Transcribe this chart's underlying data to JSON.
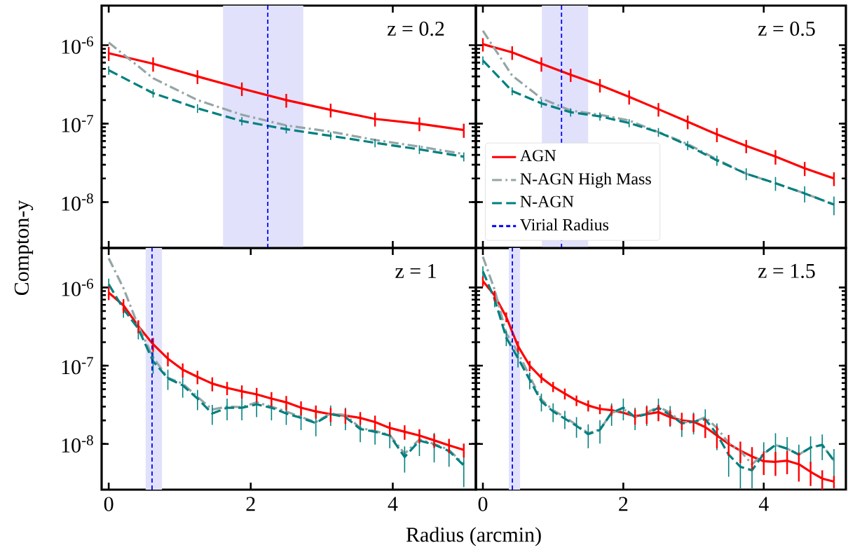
{
  "chart_data": [
    {
      "type": "line",
      "title": "z = 0.2",
      "ylabel": "Compton-y",
      "log": "y",
      "tick_labels": "y",
      "xlim": [
        -0.1,
        5.17
      ],
      "ylim": [
        2.6e-09,
        3.2e-06
      ],
      "xticks": [
        0,
        2,
        4
      ],
      "yticks": [
        {
          "value": 1e-08,
          "label": "10$^{-8}$"
        },
        {
          "value": 1e-07,
          "label": "10$^{-7}$"
        },
        {
          "value": 1e-06,
          "label": "10$^{-6}$"
        }
      ],
      "x": [
        0,
        0.625,
        1.25,
        1.875,
        2.5,
        3.125,
        3.75,
        4.375,
        5.0
      ],
      "bands": [
        {
          "axis": "x",
          "from": 1.61,
          "to": 2.74,
          "color": "#e1e1fb"
        }
      ],
      "ref_lines": [
        {
          "axis": "x",
          "value": 2.24,
          "color": "#0000ff",
          "line_style": "dashed"
        }
      ],
      "series": [
        {
          "color": "#ff0000",
          "line_style": "solid",
          "values": [
            7.9e-07,
            5.8e-07,
            4e-07,
            2.8e-07,
            2e-07,
            1.5e-07,
            1.15e-07,
            1e-07,
            8.3e-08
          ],
          "errors": [
            1.6e-07,
            1.2e-07,
            8e-08,
            5.5e-08,
            4e-08,
            3e-08,
            2.3e-08,
            2e-08,
            1.7e-08
          ]
        },
        {
          "color": "#95a5a6",
          "line_style": "dashdot",
          "values": [
            1.08e-06,
            3.8e-07,
            2e-07,
            1.3e-07,
            9.5e-08,
            7.9e-08,
            6.2e-08,
            5.1e-08,
            4.1e-08
          ]
        },
        {
          "color": "#008080",
          "line_style": "dashed",
          "values": [
            4.8e-07,
            2.45e-07,
            1.57e-07,
            1.08e-07,
            8.5e-08,
            7e-08,
            5.7e-08,
            4.7e-08,
            3.8e-08
          ],
          "errors": [
            6e-08,
            3e-08,
            2e-08,
            1.3e-08,
            1e-08,
            8e-09,
            7e-09,
            6e-09,
            5e-09
          ]
        }
      ]
    },
    {
      "type": "line",
      "title": "z = 0.5",
      "log": "y",
      "tick_labels": false,
      "legend": "bottom left",
      "xlim": [
        -0.1,
        5.17
      ],
      "ylim": [
        2.6e-09,
        3.2e-06
      ],
      "xticks": [
        0,
        2,
        4
      ],
      "yticks": [
        {
          "value": 1e-08,
          "label": null
        },
        {
          "value": 1e-07,
          "label": null
        },
        {
          "value": 1e-06,
          "label": null
        }
      ],
      "x": [
        0,
        0.417,
        0.833,
        1.25,
        1.667,
        2.083,
        2.5,
        2.917,
        3.333,
        3.75,
        4.167,
        4.583,
        5.0
      ],
      "bands": [
        {
          "axis": "x",
          "from": 0.84,
          "to": 1.5,
          "color": "#e1e1fb"
        }
      ],
      "ref_lines": [
        {
          "axis": "x",
          "value": 1.12,
          "label": "Virial Radius",
          "color": "#0000ff",
          "line_style": "dashed"
        }
      ],
      "series": [
        {
          "name": "AGN",
          "color": "#ff0000",
          "line_style": "solid",
          "values": [
            1.03e-06,
            8.1e-07,
            5.8e-07,
            4.2e-07,
            3.1e-07,
            2.2e-07,
            1.53e-07,
            1.06e-07,
            7.3e-08,
            5.2e-08,
            3.8e-08,
            2.7e-08,
            2e-08
          ],
          "errors": [
            2e-07,
            1.6e-07,
            1.2e-07,
            8e-08,
            6e-08,
            4.5e-08,
            3e-08,
            2.1e-08,
            1.5e-08,
            1e-08,
            8e-09,
            5.5e-09,
            4e-09
          ]
        },
        {
          "name": "N-AGN High Mass",
          "color": "#95a5a6",
          "line_style": "dashdot",
          "values": [
            1.53e-06,
            4.1e-07,
            2.1e-07,
            1.47e-07,
            1.3e-07,
            1.1e-07,
            7.8e-08,
            5.5e-08,
            3.5e-08,
            2.3e-08,
            1.74e-08,
            1.29e-08,
            9.3e-09
          ]
        },
        {
          "name": "N-AGN",
          "color": "#008080",
          "line_style": "dashed",
          "values": [
            6.4e-07,
            2.6e-07,
            1.82e-07,
            1.4e-07,
            1.24e-07,
            1.02e-07,
            7.8e-08,
            5.3e-08,
            3.4e-08,
            2.3e-08,
            1.74e-08,
            1.29e-08,
            9.3e-09
          ],
          "errors": [
            8e-08,
            3e-08,
            2.2e-08,
            1.7e-08,
            1.5e-08,
            1.2e-08,
            1e-08,
            7e-09,
            5e-09,
            4e-09,
            3.5e-09,
            3e-09,
            2.5e-09
          ]
        }
      ]
    },
    {
      "type": "line",
      "title": "z = 1",
      "xlabel": "Radius (arcmin)",
      "log": "y",
      "xlim": [
        -0.1,
        5.17
      ],
      "ylim": [
        2.6e-09,
        3.2e-06
      ],
      "xticks": [
        0,
        2,
        4
      ],
      "yticks": [
        {
          "value": 1e-08,
          "label": "10$^{-8}$"
        },
        {
          "value": 1e-07,
          "label": "10$^{-7}$"
        },
        {
          "value": 1e-06,
          "label": "10$^{-6}$"
        }
      ],
      "x": [
        0,
        0.208,
        0.417,
        0.625,
        0.833,
        1.042,
        1.25,
        1.458,
        1.667,
        1.875,
        2.083,
        2.292,
        2.5,
        2.708,
        2.917,
        3.125,
        3.333,
        3.542,
        3.75,
        3.958,
        4.167,
        4.375,
        4.583,
        4.792,
        5.0
      ],
      "bands": [
        {
          "axis": "x",
          "from": 0.52,
          "to": 0.75,
          "color": "#e1e1fb"
        }
      ],
      "ref_lines": [
        {
          "axis": "x",
          "value": 0.61,
          "color": "#0000ff",
          "line_style": "dashed"
        }
      ],
      "series": [
        {
          "color": "#ff0000",
          "line_style": "solid",
          "values": [
            8.6e-07,
            5.9e-07,
            3.2e-07,
            1.88e-07,
            1.23e-07,
            8.9e-08,
            7.2e-08,
            5.9e-08,
            5.2e-08,
            4.7e-08,
            4.3e-08,
            3.8e-08,
            3.4e-08,
            2.9e-08,
            2.6e-08,
            2.4e-08,
            2.3e-08,
            2.15e-08,
            1.9e-08,
            1.6e-08,
            1.43e-08,
            1.28e-08,
            1.11e-08,
            9.6e-09,
            8.4e-09
          ],
          "errors": [
            1.7e-07,
            1.2e-07,
            6e-08,
            3.8e-08,
            2.5e-08,
            1.8e-08,
            1.4e-08,
            1.2e-08,
            1e-08,
            9e-09,
            9e-09,
            8e-09,
            7e-09,
            6e-09,
            5e-09,
            5e-09,
            5e-09,
            4e-09,
            4e-09,
            3e-09,
            3e-09,
            2.6e-09,
            2.2e-09,
            2e-09,
            1.7e-09
          ]
        },
        {
          "color": "#95a5a6",
          "line_style": "dashdot",
          "values": [
            2.36e-06,
            9.8e-07,
            3.2e-07,
            1.28e-07,
            7e-08,
            5.9e-08,
            4e-08,
            2.75e-08,
            3e-08,
            2.95e-08,
            3.4e-08,
            3e-08,
            2.6e-08,
            2.2e-08,
            1.9e-08,
            2.45e-08,
            2.35e-08,
            1.6e-08,
            1.46e-08,
            1.3e-08,
            7.5e-09,
            1.14e-08,
            1e-08,
            8.4e-09,
            5.5e-09
          ]
        },
        {
          "color": "#008080",
          "line_style": "dashed",
          "values": [
            1.1e-06,
            5.3e-07,
            2.97e-07,
            1.14e-07,
            6.9e-08,
            5.6e-08,
            3.8e-08,
            2.45e-08,
            2.9e-08,
            2.9e-08,
            3.2e-08,
            2.9e-08,
            2.45e-08,
            2.15e-08,
            1.85e-08,
            2.4e-08,
            2.2e-08,
            1.55e-08,
            1.43e-08,
            1.28e-08,
            6.8e-09,
            1.1e-08,
            9.8e-09,
            8.1e-09,
            5.3e-09
          ],
          "errors": [
            2e-07,
            1.2e-07,
            8e-08,
            3.5e-08,
            2e-08,
            1.7e-08,
            1.1e-08,
            7e-09,
            9e-09,
            9e-09,
            1e-08,
            9e-09,
            7e-09,
            6.5e-09,
            6e-09,
            7e-09,
            7e-09,
            5e-09,
            4.5e-09,
            4e-09,
            2.5e-09,
            4e-09,
            4e-09,
            3e-09,
            2.5e-09
          ]
        }
      ]
    },
    {
      "type": "line",
      "title": "z = 1.5",
      "log": "y",
      "tick_labels": "x",
      "xlim": [
        -0.1,
        5.17
      ],
      "ylim": [
        2.6e-09,
        3.2e-06
      ],
      "xticks": [
        0,
        2,
        4
      ],
      "yticks": [
        {
          "value": 1e-08,
          "label": null
        },
        {
          "value": 1e-07,
          "label": null
        },
        {
          "value": 1e-06,
          "label": null
        }
      ],
      "x": [
        0,
        0.167,
        0.333,
        0.5,
        0.667,
        0.833,
        1.0,
        1.167,
        1.333,
        1.5,
        1.667,
        1.833,
        2.0,
        2.167,
        2.333,
        2.5,
        2.667,
        2.833,
        3.0,
        3.167,
        3.333,
        3.5,
        3.667,
        3.833,
        4.0,
        4.167,
        4.333,
        4.5,
        4.667,
        4.833,
        5.0
      ],
      "bands": [
        {
          "axis": "x",
          "from": 0.37,
          "to": 0.53,
          "color": "#e1e1fb"
        }
      ],
      "ref_lines": [
        {
          "axis": "x",
          "value": 0.42,
          "color": "#0000ff",
          "line_style": "dashed"
        }
      ],
      "series": [
        {
          "color": "#ff0000",
          "line_style": "solid",
          "values": [
            1.21e-06,
            7.9e-07,
            4.2e-07,
            1.78e-07,
            1e-07,
            7e-08,
            5.4e-08,
            4.4e-08,
            3.6e-08,
            3.1e-08,
            2.8e-08,
            2.7e-08,
            2.5e-08,
            2.26e-08,
            2.4e-08,
            2.55e-08,
            2.2e-08,
            2e-08,
            1.92e-08,
            1.64e-08,
            1.28e-08,
            1e-08,
            8.2e-09,
            6.9e-09,
            6e-09,
            5.9e-09,
            6.1e-09,
            5.5e-09,
            4.4e-09,
            3.6e-09,
            3.3e-09
          ],
          "errors": [
            1.8e-07,
            1.2e-07,
            6e-08,
            2.7e-08,
            1.5e-08,
            1e-08,
            8e-09,
            7e-09,
            5.5e-09,
            5e-09,
            4e-09,
            4e-09,
            null,
            5e-09,
            6e-09,
            6e-09,
            5e-09,
            5e-09,
            5e-09,
            4.5e-09,
            4e-09,
            3e-09,
            2.5e-09,
            2.2e-09,
            2e-09,
            2e-09,
            2e-09,
            2.2e-09,
            1.5e-09,
            1e-09,
            6e-10
          ]
        },
        {
          "color": "#95a5a6",
          "line_style": "dashdot",
          "values": [
            2.47e-06,
            9.4e-07,
            2.6e-07,
            1.49e-07,
            7.3e-08,
            3.7e-08,
            2.7e-08,
            2.2e-08,
            1.75e-08,
            1.37e-08,
            1.53e-08,
            2.5e-08,
            2.8e-08,
            2.2e-08,
            2.5e-08,
            3e-08,
            2.5e-08,
            1.9e-08,
            1.9e-08,
            2.2e-08,
            1.6e-08,
            1.03e-08,
            8.1e-09,
            5.5e-09,
            7.5e-09,
            9.7e-09,
            8.7e-09,
            7.3e-09,
            9e-09,
            9.7e-09,
            6.1e-09
          ]
        },
        {
          "color": "#008080",
          "line_style": "dashed",
          "values": [
            1.61e-06,
            7.1e-07,
            2.28e-07,
            1.25e-07,
            6.6e-08,
            3.5e-08,
            2.6e-08,
            2.1e-08,
            1.7e-08,
            1.33e-08,
            1.51e-08,
            2.5e-08,
            2.9e-08,
            2.2e-08,
            2.4e-08,
            2.9e-08,
            2.35e-08,
            1.83e-08,
            1.92e-08,
            2.07e-08,
            1.33e-08,
            7.3e-09,
            5.1e-09,
            4.6e-09,
            7.5e-09,
            9.7e-09,
            8.7e-09,
            7.3e-09,
            9e-09,
            9.7e-09,
            6.1e-09
          ],
          "errors": [
            2.5e-07,
            1.5e-07,
            5e-08,
            3e-08,
            1.6e-08,
            9e-09,
            7e-09,
            5.5e-09,
            5e-09,
            4.5e-09,
            5e-09,
            8e-09,
            9e-09,
            7e-09,
            7e-09,
            9e-09,
            7e-09,
            6e-09,
            6e-09,
            7e-09,
            5e-09,
            3.5e-09,
            2.4e-09,
            1.9e-09,
            3e-09,
            4e-09,
            3.5e-09,
            2.5e-09,
            3.5e-09,
            3.5e-09,
            2.5e-09
          ]
        }
      ]
    }
  ]
}
